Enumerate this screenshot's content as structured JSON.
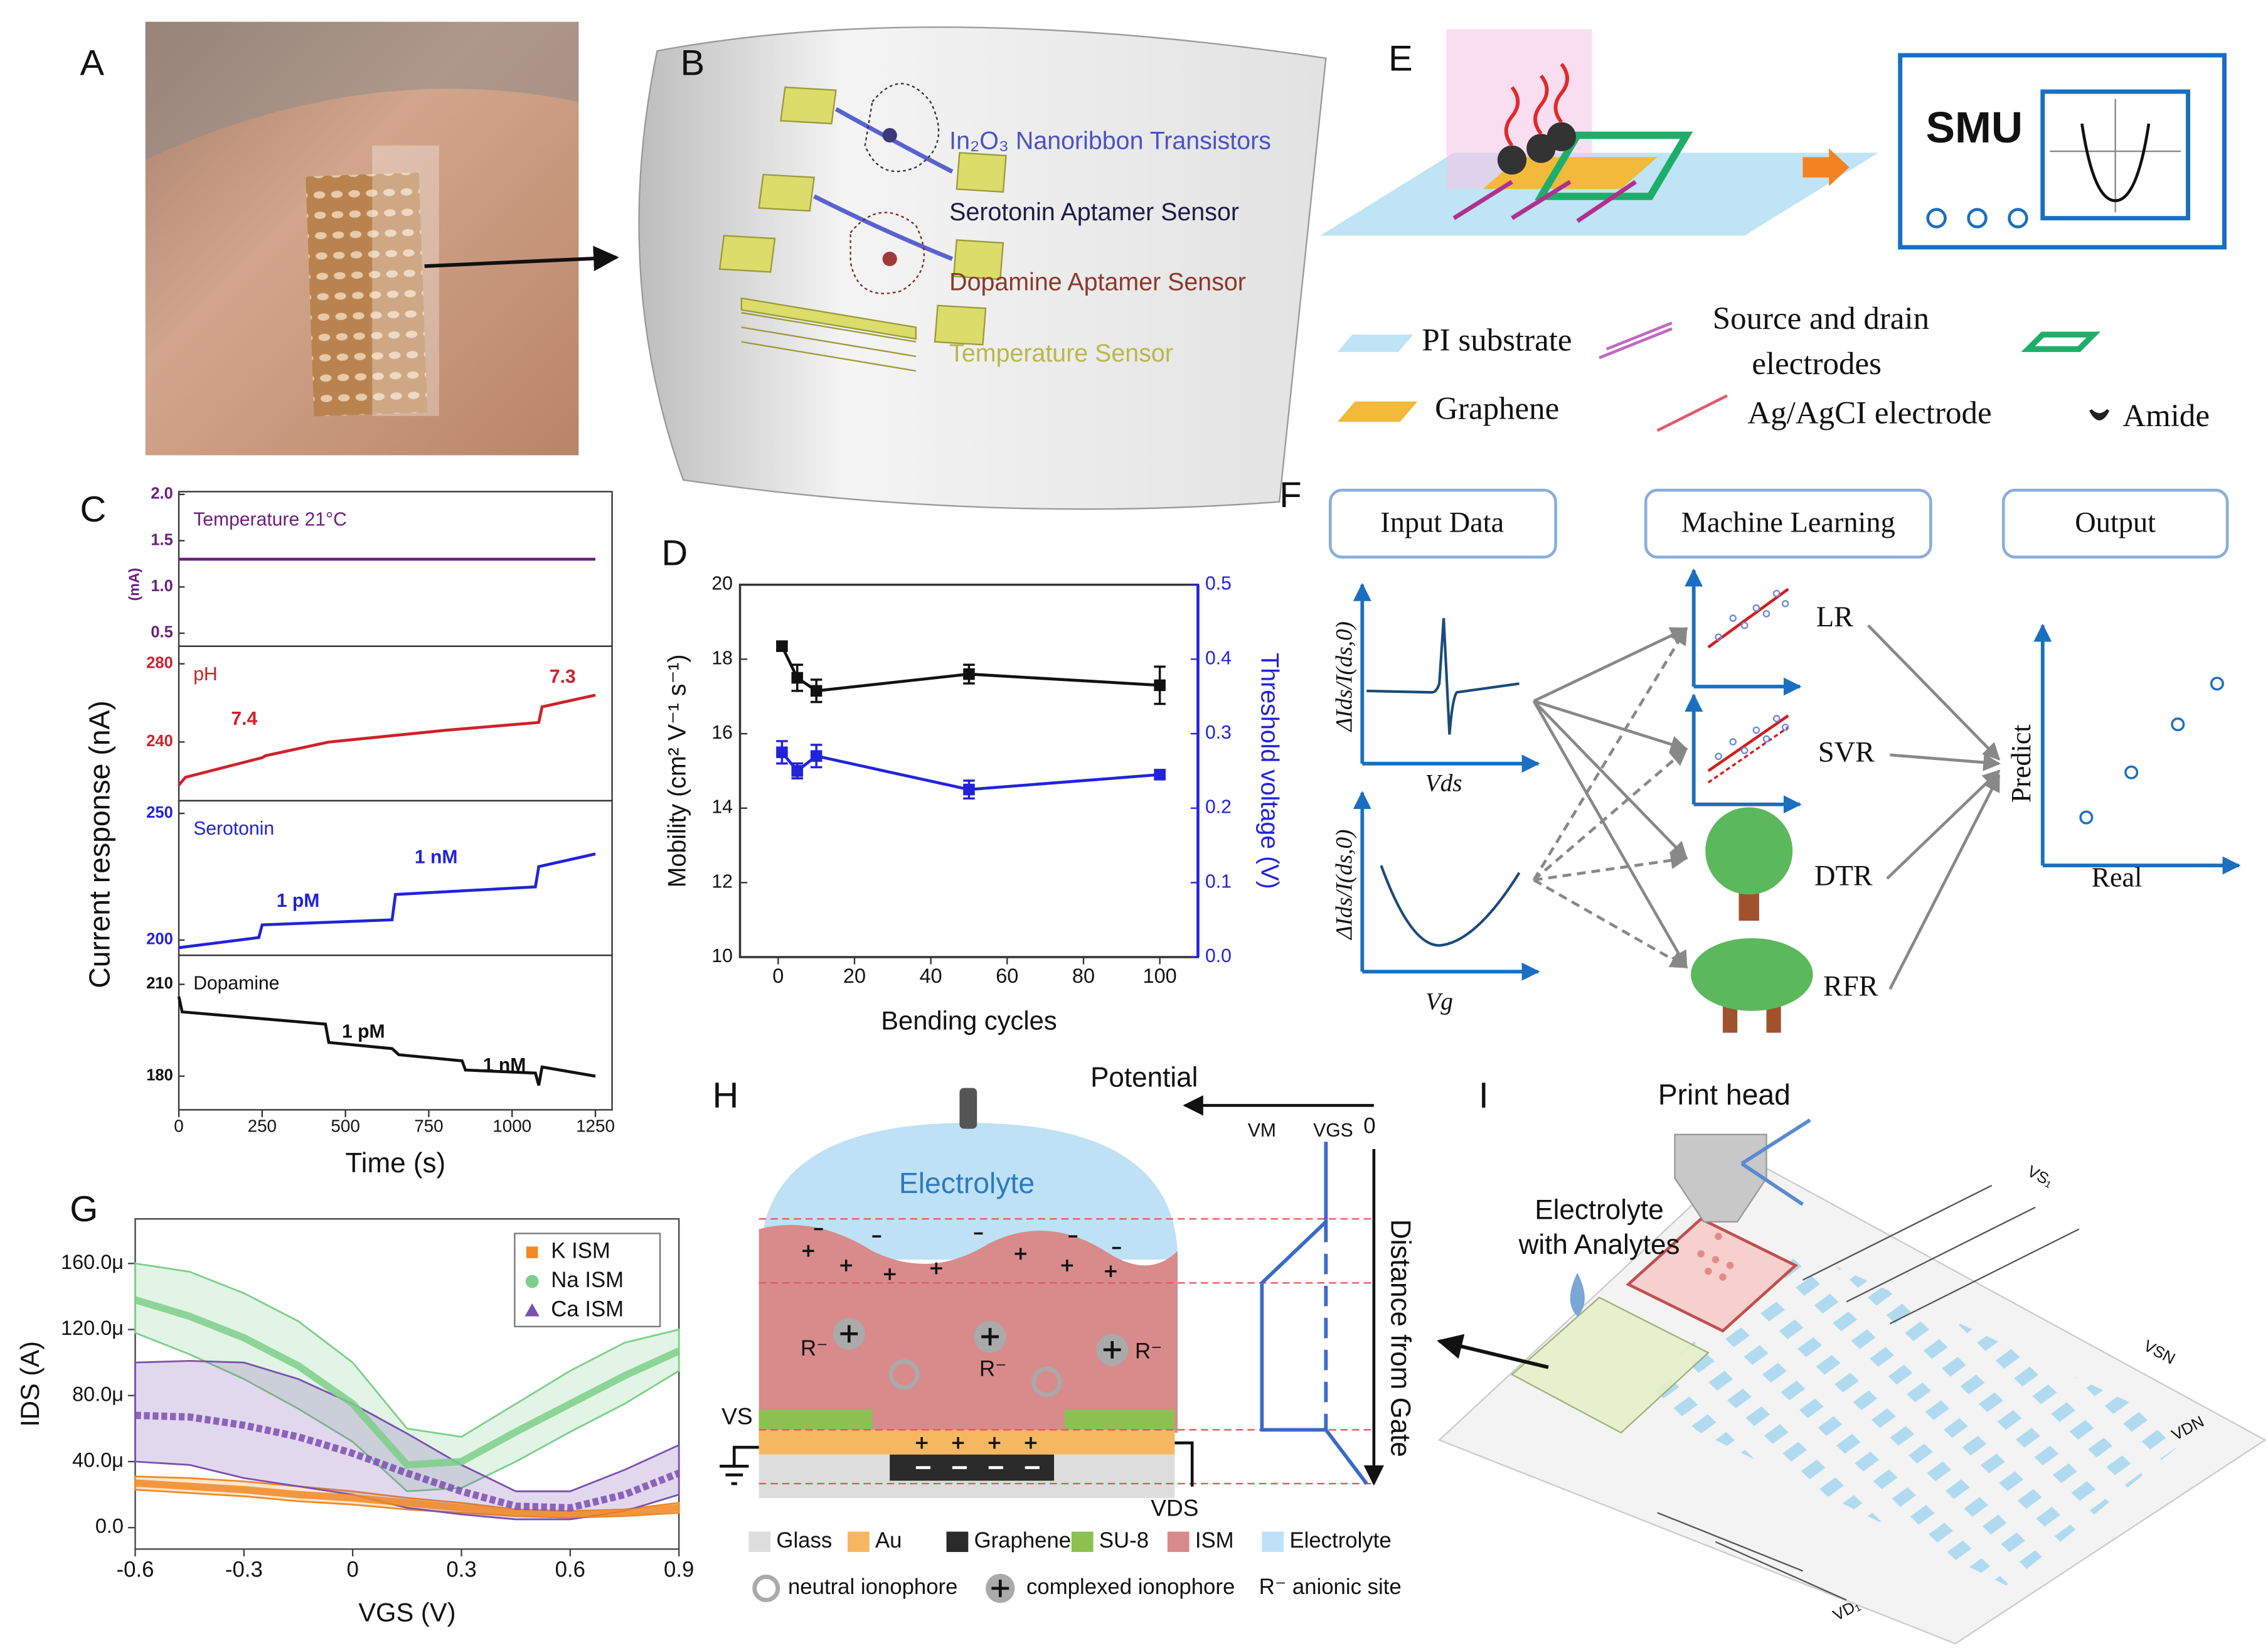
{
  "panels": {
    "A": {
      "label": "A"
    },
    "B": {
      "label": "B",
      "labels": [
        "In₂O₃ Nanoribbon Transistors",
        "Serotonin Aptamer Sensor",
        "Dopamine Aptamer Sensor",
        "Temperature Sensor"
      ]
    },
    "C": {
      "label": "C"
    },
    "D": {
      "label": "D"
    },
    "E": {
      "label": "E",
      "instrument": "SMU",
      "legend": [
        "PI substrate",
        "Source and drain",
        "electrodes",
        "Graphene",
        "Ag/AgCI electrode",
        "Amide"
      ]
    },
    "F": {
      "label": "F",
      "boxes": [
        "Input Data",
        "Machine Learning",
        "Output"
      ],
      "models": [
        "LR",
        "SVR",
        "DTR",
        "RFR"
      ],
      "input_ylabel": "ΔIds/I(ds,0)",
      "input_xlabels": [
        "Vds",
        "Vg"
      ],
      "output_ylabel": "Predict",
      "output_xlabel": "Real"
    },
    "G": {
      "label": "G"
    },
    "H": {
      "label": "H",
      "potential": "Potential",
      "potential_ticks": [
        "VM",
        "VGS",
        "0"
      ],
      "electrolyte": "Electrolyte",
      "distance": "Distance  from  Gate",
      "terminals": [
        "VS",
        "VDS"
      ],
      "ions": [
        "R⁻",
        "R⁻",
        "R⁻"
      ],
      "legend": [
        "Glass",
        "Au",
        "Graphene",
        "SU-8",
        "ISM",
        "Electrolyte"
      ],
      "legend2": [
        "neutral ionophore",
        "complexed ionophore",
        "R⁻ anionic site"
      ]
    },
    "I": {
      "label": "I",
      "print_head": "Print head",
      "analytes": [
        "Electrolyte",
        "with Analytes"
      ],
      "lines": [
        "VS₁",
        "VSN",
        "VDN",
        "VD₁"
      ]
    }
  },
  "chart_data": [
    {
      "type": "line",
      "xlabel": "Time (s)",
      "ylabel": "Current response (nA)",
      "xlim": [
        0,
        1300
      ],
      "xticks": [
        0,
        250,
        500,
        750,
        1000,
        1250
      ],
      "series": [
        {
          "name": "Temperature 21°C",
          "unit": "(mA)",
          "color": "#6b1f7c",
          "ylim": [
            0.36,
            2.03
          ],
          "yticks": [
            0.5,
            {
              "value": 1,
              "label": "1.0"
            },
            1.5,
            {
              "value": 2,
              "label": "2.0"
            }
          ],
          "x": [
            0,
            1250
          ],
          "values": [
            1.3,
            1.3
          ]
        },
        {
          "name": "pH",
          "color": "#d0202a",
          "ylim": [
            210,
            289
          ],
          "yticks": [
            240,
            280
          ],
          "annotations": [
            "7.4",
            "7.3"
          ],
          "x": [
            0,
            20,
            250,
            260,
            450,
            800,
            1080,
            1090,
            1250
          ],
          "values": [
            218,
            222,
            232,
            233,
            240,
            246,
            250,
            258,
            264
          ]
        },
        {
          "name": "Serotonin",
          "color": "#2222dd",
          "ylim": [
            194,
            255
          ],
          "yticks": [
            200,
            250
          ],
          "annotations": [
            "1 pM",
            "1 nM"
          ],
          "x": [
            0,
            240,
            250,
            640,
            650,
            1070,
            1080,
            1250
          ],
          "values": [
            197,
            201,
            206,
            208,
            218,
            221,
            229,
            234
          ]
        },
        {
          "name": "Dopamine",
          "color": "#111111",
          "ylim": [
            169,
            219.5
          ],
          "yticks": [
            180,
            210
          ],
          "annotations": [
            "1 pM",
            "1 nM"
          ],
          "x": [
            0,
            10,
            440,
            450,
            640,
            660,
            850,
            860,
            1070,
            1080,
            1090,
            1250
          ],
          "values": [
            206,
            201,
            197,
            191,
            189,
            187,
            185,
            182,
            181,
            177,
            183,
            180
          ]
        }
      ]
    },
    {
      "type": "scatter",
      "xlabel": "Bending cycles",
      "ylabel": "Mobility (cm² V⁻¹ s⁻¹)",
      "y2label": "Threshold voltage (V)",
      "y2color": "#2222dd",
      "xlim": [
        -10,
        110
      ],
      "xticks": [
        0,
        20,
        40,
        60,
        80,
        100
      ],
      "ylim": [
        10,
        20
      ],
      "yticks": [
        10,
        12,
        14,
        16,
        18,
        20
      ],
      "y2lim": [
        0,
        0.5
      ],
      "y2ticks": [
        {
          "value": 0,
          "label": "0.0"
        },
        0.1,
        0.2,
        0.3,
        0.4,
        0.5
      ],
      "series": [
        {
          "color": "#111111",
          "x": [
            1,
            5,
            10,
            50,
            100
          ],
          "values": [
            18.35,
            17.5,
            17.15,
            17.6,
            17.3
          ],
          "errors": [
            0.1,
            0.35,
            0.3,
            0.25,
            0.5
          ]
        },
        {
          "color": "#2222dd",
          "axis": "y2",
          "x": [
            1,
            5,
            10,
            50,
            100
          ],
          "values": [
            0.275,
            0.25,
            0.27,
            0.225,
            0.245
          ],
          "errors": [
            0.015,
            0.01,
            0.015,
            0.012,
            0.005
          ]
        }
      ]
    },
    {
      "type": "line",
      "xlabel": "VGS (V)",
      "ylabel": "IDS (A)",
      "xlim": [
        -0.6,
        0.9
      ],
      "xticks": [
        -0.6,
        -0.3,
        0,
        0.3,
        0.6,
        0.9
      ],
      "ylim": [
        -1.3e-05,
        0.000187
      ],
      "yticks": [
        {
          "value": 0,
          "label": "0.0"
        },
        {
          "value": 4e-05,
          "label": "40.0μ"
        },
        {
          "value": 8e-05,
          "label": "80.0μ"
        },
        {
          "value": 0.00012,
          "label": "120.0μ"
        },
        {
          "value": 0.00016,
          "label": "160.0μ"
        }
      ],
      "legend": "upper right",
      "x": [
        -0.6,
        -0.45,
        -0.3,
        -0.15,
        0,
        0.15,
        0.3,
        0.45,
        0.6,
        0.75,
        0.9
      ],
      "series": [
        {
          "name": "K ISM",
          "color": "#f08a24",
          "marker": "square",
          "values": [
            2.7e-05,
            2.5e-05,
            2.3e-05,
            2e-05,
            1.8e-05,
            1.5e-05,
            1.2e-05,
            9e-06,
            8e-06,
            9e-06,
            1.2e-05
          ],
          "lower": [
            2.3e-05,
            2.1e-05,
            1.9e-05,
            1.6e-05,
            1.4e-05,
            1.1e-05,
            9e-06,
            7e-06,
            6e-06,
            7e-06,
            9e-06
          ],
          "upper": [
            3.1e-05,
            3e-05,
            2.8e-05,
            2.5e-05,
            2.2e-05,
            1.8e-05,
            1.5e-05,
            1.1e-05,
            1e-05,
            1.1e-05,
            1.5e-05
          ]
        },
        {
          "name": "Na ISM",
          "color": "#7ccf8a",
          "marker": "circle",
          "values": [
            0.000138,
            0.000128,
            0.000115,
            9.8e-05,
            7.5e-05,
            3.8e-05,
            4e-05,
            5.8e-05,
            7.5e-05,
            9.2e-05,
            0.000107
          ],
          "lower": [
            0.000118,
            0.000105,
            9e-05,
            7.2e-05,
            5.2e-05,
            2.2e-05,
            2.4e-05,
            4e-05,
            5.8e-05,
            7.5e-05,
            9.5e-05
          ],
          "upper": [
            0.00016,
            0.000155,
            0.000142,
            0.000125,
            0.0001,
            6e-05,
            5.5e-05,
            7.5e-05,
            9.5e-05,
            0.000112,
            0.00012
          ]
        },
        {
          "name": "Ca ISM",
          "color": "#7b4fb0",
          "marker": "triangle",
          "values": [
            6.8e-05,
            6.7e-05,
            6.2e-05,
            5.5e-05,
            4.5e-05,
            3.3e-05,
            2.2e-05,
            1.3e-05,
            1.2e-05,
            2e-05,
            3.3e-05
          ],
          "lower": [
            4e-05,
            3.8e-05,
            3e-05,
            2.5e-05,
            2e-05,
            1.2e-05,
            8e-06,
            5e-06,
            5e-06,
            1e-05,
            2e-05
          ],
          "upper": [
            0.0001,
            0.000101,
            0.0001,
            9e-05,
            7.5e-05,
            5.7e-05,
            3.8e-05,
            2.2e-05,
            2.2e-05,
            3.5e-05,
            5e-05
          ]
        }
      ]
    }
  ]
}
